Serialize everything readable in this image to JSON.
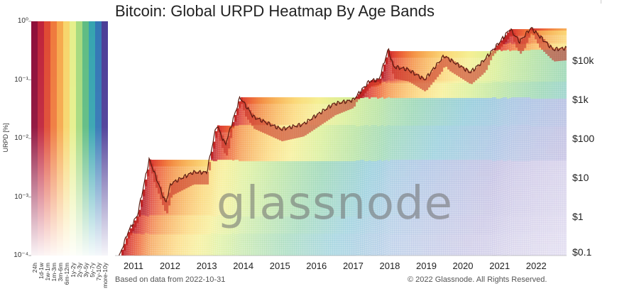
{
  "title": "Bitcoin: Global URPD Heatmap By Age Bands",
  "legend": {
    "ylabel": "URPD [%]",
    "yticks": [
      {
        "value": 0,
        "text": "10⁰"
      },
      {
        "value": -1,
        "text": "10⁻¹"
      },
      {
        "value": -2,
        "text": "10⁻²"
      },
      {
        "value": -3,
        "text": "10⁻³"
      },
      {
        "value": -4,
        "text": "10⁻⁴"
      }
    ],
    "bands": [
      "24h",
      "1d-1w",
      "1w-1m",
      "1m-3m",
      "3m-6m",
      "6m-12m",
      "1y-2y",
      "2y-3y",
      "3y-5y",
      "5y-7y",
      "7y-10y",
      "more-10y"
    ],
    "colors": [
      "#8e0f3a",
      "#c0243b",
      "#df4a33",
      "#ef7a3d",
      "#f6a94d",
      "#f7d56c",
      "#e5ef8c",
      "#a7da7f",
      "#5fbc83",
      "#36a4b0",
      "#3377b5",
      "#4c3e97"
    ]
  },
  "x_ticks": [
    "2011",
    "2012",
    "2013",
    "2014",
    "2015",
    "2016",
    "2017",
    "2018",
    "2019",
    "2020",
    "2021",
    "2022"
  ],
  "price_ticks": [
    {
      "value": 10000,
      "text": "$10k"
    },
    {
      "value": 1000,
      "text": "$1k"
    },
    {
      "value": 100,
      "text": "$100"
    },
    {
      "value": 10,
      "text": "$10"
    },
    {
      "value": 1,
      "text": "$1"
    },
    {
      "value": 0.1,
      "text": "$0.1"
    }
  ],
  "footer_left": "Based on data from 2022-10-31",
  "footer_right": "© 2022 Glassnode. All Rights Reserved.",
  "watermark": "glassnode",
  "chart_data": {
    "type": "heatmap",
    "title": "Bitcoin: Global URPD Heatmap By Age Bands",
    "x_range": [
      "2010-07-01",
      "2022-10-31"
    ],
    "y_scale": "log",
    "y_range": [
      0.1,
      100000
    ],
    "price_series": {
      "name": "",
      "x": [
        "2010-07-15",
        "2010-11-06",
        "2011-02-10",
        "2011-06-08",
        "2011-11-18",
        "2012-01-10",
        "2012-08-16",
        "2013-01-01",
        "2013-04-10",
        "2013-07-05",
        "2013-11-29",
        "2014-04-10",
        "2015-01-14",
        "2015-08-20",
        "2016-06-17",
        "2016-12-31",
        "2017-06-12",
        "2017-09-15",
        "2017-12-17",
        "2018-02-06",
        "2018-06-29",
        "2018-12-15",
        "2019-06-26",
        "2020-03-13",
        "2020-07-15",
        "2020-12-31",
        "2021-04-14",
        "2021-07-20",
        "2021-11-10",
        "2022-06-18",
        "2022-10-31"
      ],
      "y": [
        0.06,
        0.39,
        1.1,
        29.6,
        2.2,
        7.0,
        13.5,
        13.5,
        230,
        68,
        1140,
        360,
        172,
        230,
        760,
        960,
        2950,
        3200,
        19500,
        6900,
        5850,
        3200,
        13000,
        4900,
        9200,
        29000,
        63500,
        30000,
        68000,
        19000,
        20500
      ]
    },
    "legend_bands": [
      "24h",
      "1d-1w",
      "1w-1m",
      "1m-3m",
      "3m-6m",
      "6m-12m",
      "1y-2y",
      "2y-3y",
      "3y-5y",
      "5y-7y",
      "7y-10y",
      "more-10y"
    ],
    "colorbar_range_pct": [
      0.0001,
      1
    ],
    "colorbar_scale": "log",
    "xlabel": "",
    "ylabel": ""
  }
}
